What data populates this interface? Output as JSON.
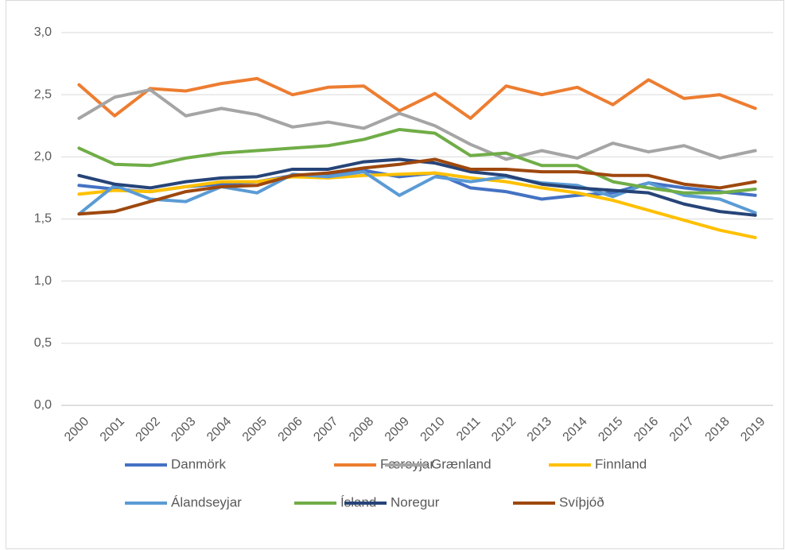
{
  "chart_data": {
    "type": "line",
    "categories": [
      "2000",
      "2001",
      "2002",
      "2003",
      "2004",
      "2005",
      "2006",
      "2007",
      "2008",
      "2009",
      "2010",
      "2011",
      "2012",
      "2013",
      "2014",
      "2015",
      "2016",
      "2017",
      "2018",
      "2019"
    ],
    "series": [
      {
        "name": "Danmörk",
        "color": "#4472c4",
        "values": [
          1.77,
          1.74,
          1.72,
          1.76,
          1.78,
          1.8,
          1.85,
          1.85,
          1.89,
          1.84,
          1.87,
          1.75,
          1.72,
          1.66,
          1.69,
          1.71,
          1.79,
          1.75,
          1.72,
          1.69
        ]
      },
      {
        "name": "Færeyjar",
        "color": "#ed7d31",
        "values": [
          2.58,
          2.33,
          2.55,
          2.53,
          2.59,
          2.63,
          2.5,
          2.56,
          2.57,
          2.37,
          2.51,
          2.31,
          2.57,
          2.5,
          2.56,
          2.42,
          2.62,
          2.47,
          2.5,
          2.39
        ]
      },
      {
        "name": "Grænland",
        "color": "#a5a5a5",
        "values": [
          2.31,
          2.48,
          2.54,
          2.33,
          2.39,
          2.34,
          2.24,
          2.28,
          2.23,
          2.35,
          2.25,
          2.1,
          1.98,
          2.05,
          1.99,
          2.11,
          2.04,
          2.09,
          1.99,
          2.05
        ]
      },
      {
        "name": "Finnland",
        "color": "#ffc000",
        "values": [
          1.7,
          1.73,
          1.72,
          1.76,
          1.8,
          1.8,
          1.84,
          1.83,
          1.85,
          1.86,
          1.87,
          1.83,
          1.8,
          1.75,
          1.71,
          1.65,
          1.57,
          1.49,
          1.41,
          1.35
        ]
      },
      {
        "name": "Álandseyjar",
        "color": "#5b9bd5",
        "values": [
          1.54,
          1.77,
          1.66,
          1.64,
          1.76,
          1.71,
          1.86,
          1.84,
          1.88,
          1.69,
          1.84,
          1.8,
          1.84,
          1.79,
          1.77,
          1.68,
          1.79,
          1.69,
          1.66,
          1.55
        ]
      },
      {
        "name": "Ísland",
        "color": "#70ad47",
        "values": [
          2.07,
          1.94,
          1.93,
          1.99,
          2.03,
          2.05,
          2.07,
          2.09,
          2.14,
          2.22,
          2.19,
          2.01,
          2.03,
          1.93,
          1.93,
          1.8,
          1.75,
          1.71,
          1.71,
          1.74
        ]
      },
      {
        "name": "Noregur",
        "color": "#264478",
        "values": [
          1.85,
          1.78,
          1.75,
          1.8,
          1.83,
          1.84,
          1.9,
          1.9,
          1.96,
          1.98,
          1.95,
          1.88,
          1.85,
          1.78,
          1.75,
          1.73,
          1.71,
          1.62,
          1.56,
          1.53
        ]
      },
      {
        "name": "Svíþjóð",
        "color": "#9e480e",
        "values": [
          1.54,
          1.56,
          1.64,
          1.72,
          1.76,
          1.77,
          1.85,
          1.87,
          1.91,
          1.94,
          1.98,
          1.9,
          1.9,
          1.88,
          1.88,
          1.85,
          1.85,
          1.78,
          1.75,
          1.8
        ]
      }
    ],
    "ylim": [
      0,
      3
    ],
    "yticks": [
      {
        "value": 0,
        "label": "0,0"
      },
      {
        "value": 0.5,
        "label": "0,5"
      },
      {
        "value": 1,
        "label": "1,0"
      },
      {
        "value": 1.5,
        "label": "1,5"
      },
      {
        "value": 2,
        "label": "2,0"
      },
      {
        "value": 2.5,
        "label": "2,5"
      },
      {
        "value": 3,
        "label": "3,0"
      }
    ],
    "grid": true,
    "legend": "bottom"
  }
}
